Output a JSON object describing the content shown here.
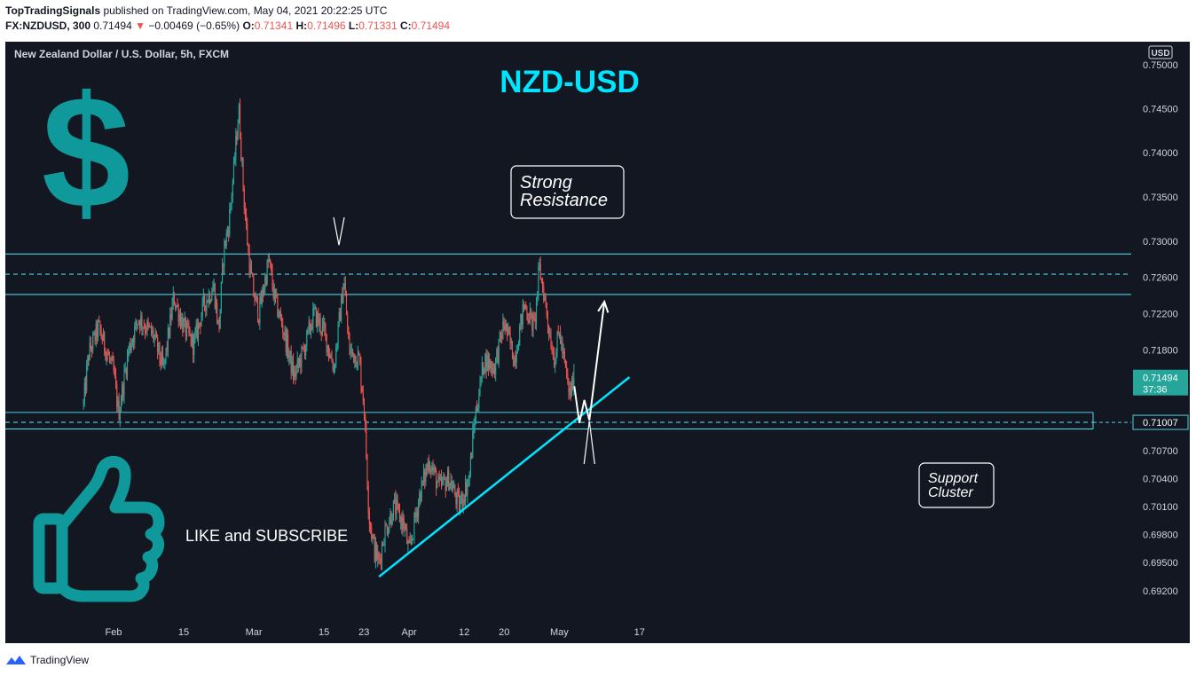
{
  "header": {
    "author": "TopTradingSignals",
    "published_text": "published on TradingView.com, May 04, 2021 20:22:25 UTC",
    "symbol": "FX:NZDUSD, 300",
    "last": "0.71494",
    "change_arrow": "▼",
    "change": "−0.00469 (−0.65%)",
    "o_label": "O:",
    "o_value": "0.71341",
    "h_label": "H:",
    "h_value": "0.71496",
    "l_label": "L:",
    "l_value": "0.71331",
    "c_label": "C:",
    "c_value": "0.71494"
  },
  "chart_title": "New Zealand Dollar / U.S. Dollar, 5h, FXCM",
  "currency_badge": "USD",
  "footer": {
    "brand": "TradingView"
  },
  "colors": {
    "background": "#131722",
    "bull": "#26a69a",
    "bear": "#ef5350",
    "level_lines": "#4dd0e1",
    "trendline": "#00e5ff",
    "title_cyan": "#00e5ff",
    "icon_teal": "#10999b",
    "price_badge": "#26a69a"
  },
  "icons": [
    "dollar-sign-icon",
    "thumbs-up-icon",
    "tradingview-logo-icon"
  ],
  "chart_data": {
    "type": "candlestick",
    "title": "NZD-USD",
    "subtitle": "New Zealand Dollar / U.S. Dollar, 5h, FXCM",
    "xlabel": "",
    "ylabel": "",
    "ylim": [
      0.69,
      0.75
    ],
    "y_scale": "log",
    "grid": false,
    "x_ticks": [
      "Feb",
      "15",
      "Mar",
      "15",
      "23",
      "Apr",
      "12",
      "20",
      "May",
      "17"
    ],
    "y_ticks": [
      "0.75000",
      "0.74500",
      "0.74000",
      "0.73500",
      "0.73000",
      "0.72600",
      "0.72200",
      "0.71800",
      "0.71494",
      "0.71007",
      "0.70700",
      "0.70400",
      "0.70100",
      "0.69800",
      "0.69500",
      "0.69200"
    ],
    "countdown": "37:36",
    "path": [
      [
        "2021-01-26",
        0.712
      ],
      [
        "2021-01-27",
        0.7175
      ],
      [
        "2021-01-29",
        0.7205
      ],
      [
        "2021-02-01",
        0.7155
      ],
      [
        "2021-02-02",
        0.711
      ],
      [
        "2021-02-04",
        0.718
      ],
      [
        "2021-02-06",
        0.7215
      ],
      [
        "2021-02-09",
        0.7195
      ],
      [
        "2021-02-11",
        0.7158
      ],
      [
        "2021-02-13",
        0.7238
      ],
      [
        "2021-02-15",
        0.7205
      ],
      [
        "2021-02-17",
        0.7185
      ],
      [
        "2021-02-19",
        0.723
      ],
      [
        "2021-02-21",
        0.725
      ],
      [
        "2021-02-22",
        0.72
      ],
      [
        "2021-02-23",
        0.729
      ],
      [
        "2021-02-24",
        0.732
      ],
      [
        "2021-02-25",
        0.738
      ],
      [
        "2021-02-26",
        0.745
      ],
      [
        "2021-02-27",
        0.735
      ],
      [
        "2021-02-28",
        0.728
      ],
      [
        "2021-03-01",
        0.724
      ],
      [
        "2021-03-02",
        0.722
      ],
      [
        "2021-03-04",
        0.728
      ],
      [
        "2021-03-05",
        0.724
      ],
      [
        "2021-03-07",
        0.72
      ],
      [
        "2021-03-09",
        0.715
      ],
      [
        "2021-03-11",
        0.718
      ],
      [
        "2021-03-13",
        0.722
      ],
      [
        "2021-03-15",
        0.72
      ],
      [
        "2021-03-17",
        0.716
      ],
      [
        "2021-03-19",
        0.7258
      ],
      [
        "2021-03-20",
        0.718
      ],
      [
        "2021-03-22",
        0.717
      ],
      [
        "2021-03-23",
        0.712
      ],
      [
        "2021-03-24",
        0.7
      ],
      [
        "2021-03-25",
        0.6965
      ],
      [
        "2021-03-26",
        0.695
      ],
      [
        "2021-03-27",
        0.698
      ],
      [
        "2021-03-29",
        0.701
      ],
      [
        "2021-03-31",
        0.699
      ],
      [
        "2021-04-01",
        0.696
      ],
      [
        "2021-04-03",
        0.702
      ],
      [
        "2021-04-05",
        0.706
      ],
      [
        "2021-04-07",
        0.703
      ],
      [
        "2021-04-09",
        0.704
      ],
      [
        "2021-04-11",
        0.701
      ],
      [
        "2021-04-13",
        0.704
      ],
      [
        "2021-04-14",
        0.71
      ],
      [
        "2021-04-16",
        0.717
      ],
      [
        "2021-04-18",
        0.716
      ],
      [
        "2021-04-20",
        0.721
      ],
      [
        "2021-04-22",
        0.717
      ],
      [
        "2021-04-24",
        0.723
      ],
      [
        "2021-04-26",
        0.7205
      ],
      [
        "2021-04-27",
        0.727
      ],
      [
        "2021-04-28",
        0.724
      ],
      [
        "2021-04-29",
        0.72
      ],
      [
        "2021-04-30",
        0.717
      ],
      [
        "2021-05-01",
        0.72
      ],
      [
        "2021-05-02",
        0.7165
      ],
      [
        "2021-05-03",
        0.713
      ],
      [
        "2021-05-04",
        0.7149
      ]
    ],
    "levels": [
      {
        "price": 0.7286,
        "style": "solid"
      },
      {
        "price": 0.72635,
        "style": "dashed"
      },
      {
        "price": 0.7241,
        "style": "solid"
      },
      {
        "price": 0.71115,
        "style": "solid"
      },
      {
        "price": 0.71007,
        "style": "dashed"
      },
      {
        "price": 0.70935,
        "style": "solid"
      }
    ],
    "last_price": 0.71494,
    "level_price": 0.71007,
    "trendline": [
      [
        "2021-03-26",
        0.6935
      ],
      [
        "2021-05-15",
        0.715
      ]
    ],
    "projection": [
      [
        "2021-05-04",
        0.714
      ],
      [
        "2021-05-05",
        0.71
      ],
      [
        "2021-05-06",
        0.7125
      ],
      [
        "2021-05-07",
        0.7103
      ],
      [
        "2021-05-10",
        0.7233
      ]
    ],
    "annotations": [
      {
        "text": "Strong\nResistance",
        "anchor": [
          "2021-03-18",
          0.7286
        ]
      },
      {
        "text": "Support\nCluster",
        "anchor": [
          "2021-05-07",
          0.7103
        ]
      },
      {
        "text": "LIKE and SUBSCRIBE"
      }
    ]
  }
}
